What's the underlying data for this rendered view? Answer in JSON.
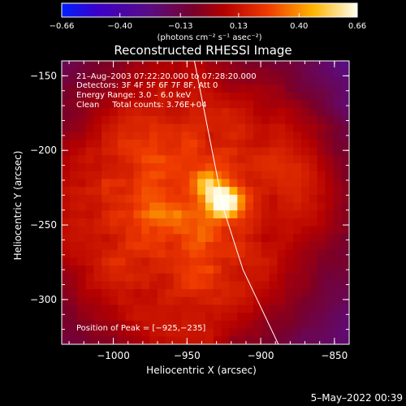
{
  "chart_data": {
    "type": "heatmap",
    "title": "Reconstructed RHESSI Image",
    "xlabel": "Heliocentric X (arcsec)",
    "ylabel": "Heliocentric Y (arcsec)",
    "xlim": [
      -1035,
      -840
    ],
    "ylim": [
      -330,
      -140
    ],
    "x_ticks": [
      -1000,
      -950,
      -900,
      -850
    ],
    "y_ticks": [
      -150,
      -200,
      -250,
      -300
    ],
    "x_tick_labels": [
      "−1000",
      "−950",
      "−900",
      "−850"
    ],
    "y_tick_labels": [
      "−150",
      "−200",
      "−250",
      "−300"
    ],
    "colorbar": {
      "range": [
        -0.66,
        0.66
      ],
      "ticks": [
        -0.66,
        -0.4,
        -0.13,
        0.13,
        0.4,
        0.66
      ],
      "tick_labels": [
        "−0.66",
        "−0.40",
        "−0.13",
        "0.13",
        "0.40",
        "0.66"
      ],
      "units": "(photons cm⁻² s⁻¹ asec⁻²)"
    },
    "annotations": {
      "time": "21–Aug–2003 07:22:20.000 to 07:28:20.000",
      "detectors": "Detectors: 3F 4F 5F 6F 7F 8F, Att 0",
      "energy": "Energy Range: 3.0 – 6.0 keV",
      "clean": "Clean     Total counts: 3.76E+04",
      "peak": "Position of Peak = [−925,−235]"
    },
    "peak": {
      "x": -925,
      "y": -235,
      "value": 0.66
    },
    "secondary_peak": {
      "x": -937,
      "y": -222,
      "value": 0.45
    },
    "limb_curve": [
      {
        "x": -945,
        "y": -140
      },
      {
        "x": -935,
        "y": -190
      },
      {
        "x": -925,
        "y": -240
      },
      {
        "x": -912,
        "y": -280
      },
      {
        "x": -888,
        "y": -330
      }
    ],
    "background_level": 0.1,
    "disk_level": 0.28
  },
  "footer": {
    "date": "5–May–2022 00:39"
  }
}
